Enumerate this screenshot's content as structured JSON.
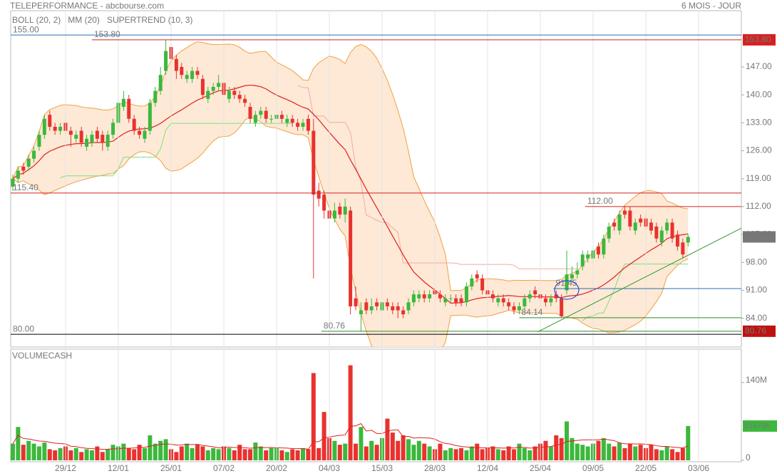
{
  "header": {
    "title": "TELEPERFORMANCE - abcbourse.com",
    "period": "6 MOIS - JOUR"
  },
  "chart_data": [
    {
      "type": "candlestick",
      "legend": [
        {
          "name": "BOLL (20, 2)",
          "color": "#f0a040"
        },
        {
          "name": "MM (20)",
          "color": "#e02020"
        },
        {
          "name": "SUPERTREND (10, 3)",
          "color": "#f4a8a8"
        }
      ],
      "up_color": "#3cb83c",
      "down_color": "#e8322e",
      "open": [
        117,
        119,
        122,
        122,
        124,
        127,
        130,
        135,
        132,
        131,
        133,
        131,
        129,
        131,
        127,
        128,
        131,
        130,
        127,
        130,
        133,
        137,
        139,
        134,
        131,
        129,
        131,
        138,
        141,
        146,
        152,
        149,
        147,
        144,
        144,
        146,
        144,
        139,
        141,
        142,
        143,
        139,
        141,
        140,
        139,
        137,
        133,
        135,
        136,
        134,
        134,
        135,
        133,
        134,
        133,
        132,
        134,
        131,
        116,
        115,
        111,
        109,
        112,
        110,
        111,
        89,
        85,
        88,
        86,
        88,
        86,
        88,
        87,
        87,
        86,
        86,
        88,
        89,
        90,
        89,
        91,
        90,
        88,
        89,
        89,
        89,
        88,
        92,
        95,
        94,
        91,
        90,
        88,
        89,
        88,
        87,
        86,
        87,
        89,
        91,
        90,
        89,
        88,
        90,
        89,
        91,
        94,
        95,
        97,
        99,
        99,
        102,
        100,
        104,
        108,
        106,
        111,
        111,
        106,
        109,
        109,
        108,
        107,
        103,
        106,
        108,
        105,
        103,
        103
      ],
      "high": [
        120,
        122,
        123,
        125,
        127,
        131,
        135,
        136,
        133,
        133,
        134,
        132,
        131,
        132,
        130,
        131,
        132,
        131,
        131,
        134,
        139,
        141,
        140,
        135,
        132,
        132,
        139,
        142,
        147,
        153.8,
        153,
        150,
        148,
        146,
        147,
        147,
        145,
        142,
        143,
        145,
        144,
        142,
        142,
        141,
        140,
        138,
        136,
        137,
        137,
        135,
        136,
        136,
        135,
        135,
        134,
        134,
        135,
        134,
        118,
        116,
        112,
        113,
        113,
        114,
        112,
        92,
        88,
        89,
        89,
        89,
        89,
        89,
        88,
        88,
        87,
        89,
        91,
        91,
        91,
        91,
        92,
        91,
        90,
        90,
        90,
        90,
        93,
        95,
        96,
        95,
        92,
        91,
        90,
        90,
        89,
        88,
        88,
        90,
        91,
        92,
        91,
        90,
        90,
        91,
        90,
        101,
        97,
        98,
        101,
        101,
        102,
        103,
        105,
        108,
        109,
        111,
        112,
        112,
        109,
        110,
        110,
        109,
        108,
        107,
        109,
        109,
        106,
        104,
        105
      ],
      "low": [
        116,
        118,
        120,
        121,
        123,
        126,
        129,
        131,
        130,
        130,
        130,
        127,
        128,
        127,
        126,
        127,
        128,
        126,
        126,
        129,
        132,
        136,
        133,
        130,
        129,
        128,
        130,
        137,
        140,
        145,
        148,
        144,
        144,
        143,
        143,
        144,
        139,
        138,
        140,
        141,
        139,
        138,
        139,
        138,
        137,
        133,
        132,
        134,
        133,
        133,
        133,
        133,
        132,
        132,
        131,
        131,
        130,
        94,
        112,
        109,
        108,
        108,
        109,
        108,
        85,
        86,
        80.76,
        85,
        85,
        86,
        85,
        86,
        85,
        84,
        84,
        85,
        87,
        88,
        88,
        88,
        89,
        88,
        87,
        88,
        87,
        87,
        87,
        91,
        93,
        90,
        89,
        88,
        87,
        87,
        86,
        85,
        85,
        86,
        88,
        89,
        88,
        87,
        87,
        88,
        84.14,
        90,
        93,
        94,
        96,
        98,
        98,
        99,
        99,
        103,
        106,
        105,
        109,
        106,
        105,
        107,
        106,
        105,
        103,
        102,
        105,
        103,
        101,
        99,
        102
      ],
      "close": [
        119,
        121,
        121,
        124,
        126,
        130,
        134,
        132,
        131,
        132,
        131,
        130,
        130,
        128,
        129,
        130,
        129,
        128,
        130,
        133,
        138,
        139,
        134,
        131,
        130,
        131,
        138,
        141,
        145,
        151,
        149,
        146,
        145,
        145,
        146,
        145,
        140,
        141,
        142,
        143,
        140,
        141,
        140,
        139,
        138,
        134,
        135,
        136,
        134,
        134,
        135,
        134,
        134,
        133,
        132,
        133,
        131,
        115,
        114,
        111,
        109,
        111,
        110,
        112,
        87,
        87,
        86,
        86,
        87,
        87,
        88,
        87,
        86,
        86,
        85,
        88,
        90,
        90,
        89,
        90,
        90,
        89,
        89,
        89,
        88,
        88,
        92,
        94,
        94,
        91,
        90,
        89,
        89,
        88,
        87,
        86,
        87,
        89,
        90,
        90,
        89,
        88,
        89,
        89,
        84.5,
        95,
        95,
        96,
        100,
        100,
        101,
        100,
        104,
        107,
        107,
        110,
        110,
        107,
        108,
        108,
        107,
        106,
        104,
        106,
        108,
        104,
        102,
        100,
        104.4
      ],
      "last_close_label": "104.40",
      "xlim": [
        -0.4,
        138.1
      ],
      "ylim": [
        76.8,
        161.1
      ],
      "yticks": [
        {
          "value": 84,
          "label": "84.00"
        },
        {
          "value": 91,
          "label": "91.00"
        },
        {
          "value": 98,
          "label": "98.00"
        },
        {
          "value": 105,
          "label": "105.00"
        },
        {
          "value": 112,
          "label": "112.00"
        },
        {
          "value": 119,
          "label": "119.00"
        },
        {
          "value": 126,
          "label": "126.00"
        },
        {
          "value": 133,
          "label": "133.00"
        },
        {
          "value": 140,
          "label": "140.00"
        },
        {
          "value": 147,
          "label": "147.00"
        }
      ],
      "levels": [
        {
          "value": 155,
          "label": "155.00",
          "color": "#2a6db5",
          "start": -0.4
        },
        {
          "value": 153.8,
          "label": "153.80",
          "color": "#d62020",
          "start": 15,
          "box": "#d62020"
        },
        {
          "value": 115.4,
          "label": "115.40",
          "color": "#d62020",
          "start": -0.4
        },
        {
          "value": 112,
          "label": "112.00",
          "color": "#d62020",
          "start": 108.5
        },
        {
          "value": 91.45,
          "label": "91.45",
          "color": "#2a6db5",
          "start": 102.5
        },
        {
          "value": 84.14,
          "label": "84.14",
          "color": "#2e8b2e",
          "start": 96
        },
        {
          "value": 80.76,
          "label": "80.76",
          "color": "#2e8b2e",
          "start": 58.5,
          "box": "#c01010"
        },
        {
          "value": 80,
          "label": "80.00",
          "color": "#000000",
          "start": -0.4
        }
      ],
      "trendline": {
        "x": [
          99.5,
          138.1
        ],
        "y": [
          80.6,
          106.6
        ],
        "color": "#2e9a2e"
      }
    },
    {
      "type": "bar",
      "title": "VOLUMECASH",
      "values": [
        30,
        60,
        28,
        35,
        30,
        25,
        32,
        20,
        18,
        22,
        25,
        18,
        22,
        15,
        20,
        18,
        25,
        15,
        20,
        28,
        25,
        30,
        22,
        20,
        28,
        22,
        45,
        30,
        35,
        38,
        20,
        15,
        25,
        30,
        22,
        28,
        25,
        18,
        22,
        20,
        25,
        22,
        18,
        28,
        20,
        20,
        32,
        25,
        18,
        22,
        22,
        18,
        15,
        20,
        18,
        22,
        20,
        157,
        22,
        87,
        40,
        35,
        28,
        30,
        171,
        30,
        60,
        25,
        35,
        28,
        40,
        75,
        50,
        35,
        45,
        38,
        28,
        35,
        30,
        25,
        20,
        30,
        18,
        22,
        20,
        22,
        18,
        25,
        30,
        20,
        22,
        25,
        20,
        18,
        25,
        20,
        30,
        22,
        18,
        25,
        30,
        35,
        25,
        45,
        40,
        70,
        40,
        30,
        28,
        25,
        30,
        35,
        40,
        30,
        25,
        32,
        22,
        30,
        25,
        28,
        22,
        28,
        20,
        18,
        25,
        20,
        15,
        22,
        61.679
      ],
      "last_value_label": "61679K",
      "ma_color": "#e02020",
      "xlim": [
        -0.4,
        138.1
      ],
      "ylim": [
        0,
        200
      ],
      "yticks": [
        0,
        {
          "value": 140,
          "label": "140M"
        }
      ],
      "xticks": [
        {
          "value": 10,
          "label": "29/12"
        },
        {
          "value": 20,
          "label": "12/01"
        },
        {
          "value": 30,
          "label": "25/01"
        },
        {
          "value": 40,
          "label": "07/02"
        },
        {
          "value": 50,
          "label": "20/02"
        },
        {
          "value": 60,
          "label": "04/03"
        },
        {
          "value": 70,
          "label": "15/03"
        },
        {
          "value": 80,
          "label": "28/03"
        },
        {
          "value": 90,
          "label": "12/04"
        },
        {
          "value": 100,
          "label": "25/04"
        },
        {
          "value": 110,
          "label": "09/05"
        },
        {
          "value": 120,
          "label": "22/05"
        },
        {
          "value": 130,
          "label": "03/06"
        }
      ]
    }
  ]
}
